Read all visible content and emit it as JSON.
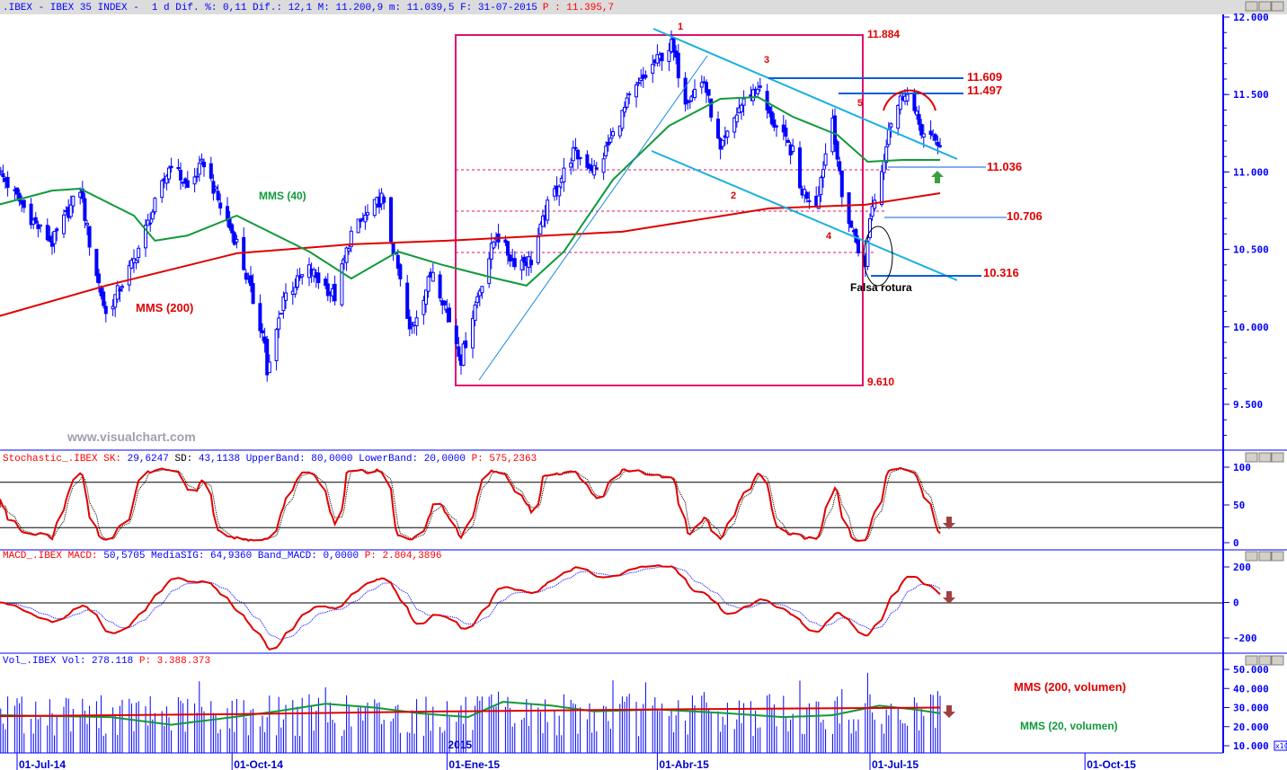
{
  "header": {
    "symbol": ".IBEX - IBEX 35 INDEX -",
    "info": "1 d Dif. %: 0,11 Dif.: 12,1 M: 11.200,9 m: 11.039,5 F: 31-07-2015",
    "price": "P : 11.395,7"
  },
  "stoch_header": {
    "name": "Stochastic_.IBEX SK:",
    "sk": "29,6247",
    "sd_label": "SD:",
    "rest": "43,1138 UpperBand: 80,0000 LowerBand: 20,0000",
    "p": "P: 575,2363"
  },
  "macd_header": {
    "name": "MACD_.IBEX MACD:",
    "rest": "50,5705 MediaSIG: 64,9360 Band_MACD: 0,0000",
    "p": "P: 2.804,3896"
  },
  "vol_header": {
    "name": "Vol_.IBEX Vol:",
    "rest": "278.118",
    "p": "P: 3.388.373"
  },
  "watermark": "www.visualchart.com",
  "colors": {
    "candle": "#0000ff",
    "mms200": "#e00000",
    "mms40": "#109a3a",
    "trend": "#1ab0e0",
    "box": "#e0106e",
    "level": "#0a5ed8",
    "label": "#e00000",
    "arrow_down": "#a04040",
    "arrow_up": "#3aa040"
  },
  "chart_data": [
    {
      "type": "candlestick",
      "title": ".IBEX - IBEX 35 INDEX",
      "ylim": [
        9200,
        12050
      ],
      "y_ticks": [
        "12.000",
        "11.500",
        "11.000",
        "10.500",
        "10.000",
        "9.500"
      ],
      "x_ticks": [
        "01-Jul-14",
        "01-Oct-14",
        "01-Ene-15",
        "01-Abr-15",
        "01-Jul-15",
        "01-Oct-15"
      ],
      "year_label": "2015",
      "close_path": [
        [
          "2014-06-23",
          11008
        ],
        [
          "2014-07-09",
          10660
        ],
        [
          "2014-07-16",
          10544
        ],
        [
          "2014-07-28",
          10892
        ],
        [
          "2014-08-01",
          10544
        ],
        [
          "2014-08-08",
          10080
        ],
        [
          "2014-08-20",
          10428
        ],
        [
          "2014-09-05",
          11066
        ],
        [
          "2014-09-12",
          10892
        ],
        [
          "2014-09-19",
          11066
        ],
        [
          "2014-09-26",
          10776
        ],
        [
          "2014-10-03",
          10544
        ],
        [
          "2014-10-15",
          9906
        ],
        [
          "2014-10-16",
          9674
        ],
        [
          "2014-10-23",
          10196
        ],
        [
          "2014-11-03",
          10370
        ],
        [
          "2014-11-14",
          10196
        ],
        [
          "2014-11-21",
          10602
        ],
        [
          "2014-12-04",
          10834
        ],
        [
          "2014-12-11",
          10370
        ],
        [
          "2014-12-16",
          9964
        ],
        [
          "2014-12-26",
          10370
        ],
        [
          "2015-01-05",
          9906
        ],
        [
          "2015-01-07",
          9790
        ],
        [
          "2015-01-14",
          10196
        ],
        [
          "2015-01-22",
          10602
        ],
        [
          "2015-01-29",
          10428
        ],
        [
          "2015-02-06",
          10428
        ],
        [
          "2015-02-13",
          10776
        ],
        [
          "2015-02-24",
          11124
        ],
        [
          "2015-03-06",
          11008
        ],
        [
          "2015-03-20",
          11472
        ],
        [
          "2015-03-31",
          11704
        ],
        [
          "2015-04-07",
          11820
        ],
        [
          "2015-04-13",
          11472
        ],
        [
          "2015-04-21",
          11588
        ],
        [
          "2015-04-28",
          11124
        ],
        [
          "2015-05-06",
          11414
        ],
        [
          "2015-05-14",
          11559
        ],
        [
          "2015-05-19",
          11356
        ],
        [
          "2015-05-29",
          11124
        ],
        [
          "2015-06-01",
          10892
        ],
        [
          "2015-06-08",
          10805
        ],
        [
          "2015-06-15",
          11356
        ],
        [
          "2015-06-19",
          10834
        ],
        [
          "2015-06-29",
          10370
        ],
        [
          "2015-07-01",
          10718
        ],
        [
          "2015-07-06",
          11008
        ],
        [
          "2015-07-09",
          11298
        ],
        [
          "2015-07-16",
          11530
        ],
        [
          "2015-07-24",
          11240
        ],
        [
          "2015-07-31",
          11180
        ]
      ],
      "series": [
        {
          "name": "MMS (40)",
          "points": [
            [
              "2014-06-23",
              10788
            ],
            [
              "2014-07-16",
              10880
            ],
            [
              "2014-07-28",
              10892
            ],
            [
              "2014-08-20",
              10718
            ],
            [
              "2014-08-29",
              10556
            ],
            [
              "2014-09-12",
              10590
            ],
            [
              "2014-10-03",
              10718
            ],
            [
              "2014-11-03",
              10486
            ],
            [
              "2014-11-21",
              10312
            ],
            [
              "2014-12-11",
              10486
            ],
            [
              "2014-12-30",
              10400
            ],
            [
              "2015-01-22",
              10312
            ],
            [
              "2015-02-04",
              10266
            ],
            [
              "2015-02-20",
              10486
            ],
            [
              "2015-03-13",
              10950
            ],
            [
              "2015-04-06",
              11298
            ],
            [
              "2015-04-28",
              11472
            ],
            [
              "2015-05-14",
              11484
            ],
            [
              "2015-05-29",
              11356
            ],
            [
              "2015-06-17",
              11240
            ],
            [
              "2015-06-30",
              11066
            ],
            [
              "2015-07-15",
              11078
            ],
            [
              "2015-07-31",
              11078
            ]
          ]
        },
        {
          "name": "MMS (200)",
          "points": [
            [
              "2014-06-23",
              10068
            ],
            [
              "2014-08-08",
              10266
            ],
            [
              "2014-10-03",
              10475
            ],
            [
              "2014-11-21",
              10533
            ],
            [
              "2015-01-01",
              10556
            ],
            [
              "2015-03-17",
              10614
            ],
            [
              "2015-05-19",
              10765
            ],
            [
              "2015-06-29",
              10788
            ],
            [
              "2015-07-31",
              10863
            ]
          ]
        }
      ],
      "annotations": {
        "levels": [
          "11.884",
          "11.609",
          "11.497",
          "11.036",
          "10.706",
          "10.316",
          "9.610"
        ],
        "wave_labels": [
          "1",
          "2",
          "3",
          "4",
          "5"
        ],
        "note": "Falsa rotura",
        "ma_labels": [
          "MMS (40)",
          "MMS (200)"
        ]
      }
    },
    {
      "type": "line",
      "title": "Stochastic_.IBEX",
      "ylim": [
        0,
        100
      ],
      "y_ticks": [
        "100",
        "50",
        "0"
      ],
      "bands": [
        80,
        20
      ],
      "series": [
        {
          "name": "SK"
        },
        {
          "name": "SD"
        }
      ]
    },
    {
      "type": "line",
      "title": "MACD_.IBEX",
      "ylim": [
        -250,
        250
      ],
      "y_ticks": [
        "200",
        "0",
        "-200"
      ],
      "series": [
        {
          "name": "MACD"
        },
        {
          "name": "MediaSIG"
        }
      ]
    },
    {
      "type": "bar",
      "title": "Vol_.IBEX",
      "ylim": [
        8000,
        52000
      ],
      "y_ticks": [
        "50.000",
        "40.000",
        "30.000",
        "20.000",
        "10.000"
      ],
      "y_multiplier": "x10",
      "series": [
        {
          "name": "MMS (200, volumen)",
          "points": [
            [
              "2014-06-23",
              25500
            ],
            [
              "2014-10-01",
              26500
            ],
            [
              "2015-01-01",
              28000
            ],
            [
              "2015-04-01",
              29000
            ],
            [
              "2015-07-31",
              30000
            ]
          ]
        },
        {
          "name": "MMS (20, volumen)",
          "points": [
            [
              "2014-06-23",
              26000
            ],
            [
              "2014-08-10",
              25000
            ],
            [
              "2014-09-05",
              21000
            ],
            [
              "2014-09-25",
              24000
            ],
            [
              "2014-10-20",
              28000
            ],
            [
              "2014-11-10",
              32000
            ],
            [
              "2014-12-01",
              30000
            ],
            [
              "2014-12-20",
              27000
            ],
            [
              "2015-01-10",
              25000
            ],
            [
              "2015-01-25",
              33000
            ],
            [
              "2015-02-15",
              31000
            ],
            [
              "2015-03-05",
              28000
            ],
            [
              "2015-04-01",
              29000
            ],
            [
              "2015-05-01",
              27000
            ],
            [
              "2015-05-25",
              25000
            ],
            [
              "2015-06-15",
              26000
            ],
            [
              "2015-07-05",
              31000
            ],
            [
              "2015-07-20",
              29000
            ],
            [
              "2015-07-31",
              27000
            ]
          ]
        }
      ]
    }
  ]
}
